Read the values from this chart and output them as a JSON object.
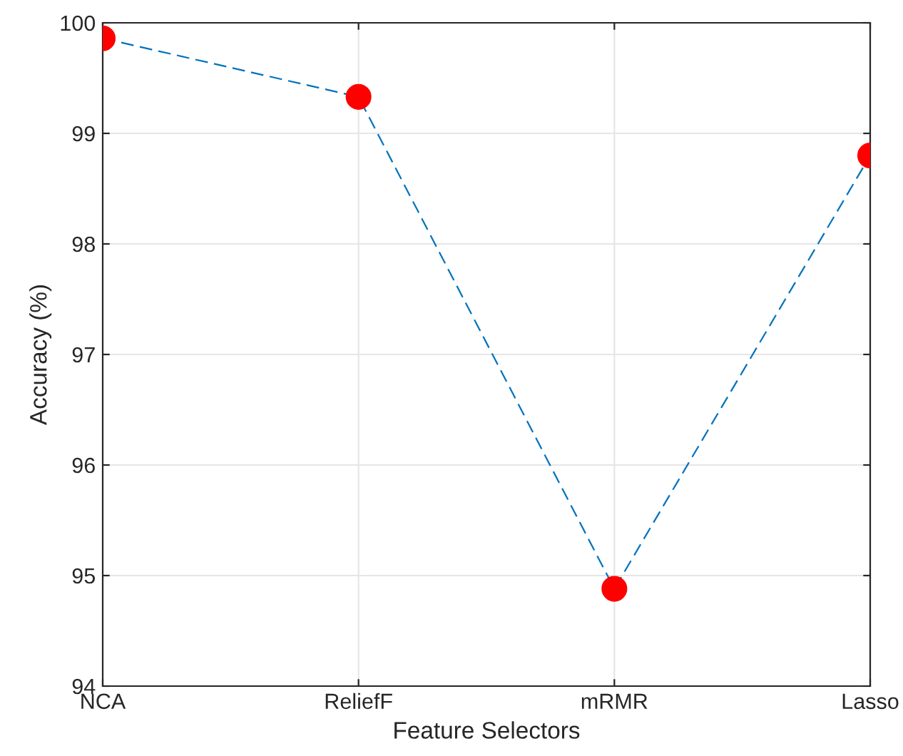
{
  "chart_data": {
    "type": "line",
    "xlabel": "Feature Selectors",
    "ylabel": "Accuracy (%)",
    "categories": [
      "NCA",
      "ReliefF",
      "mRMR",
      "Lasso"
    ],
    "series": [
      {
        "color": "#0072bd",
        "colors": [
          "#ff0000",
          "#ff0000",
          "#ff0000",
          "#ff0000"
        ],
        "values": [
          99.86,
          99.33,
          94.88,
          98.8
        ]
      }
    ],
    "ylim": [
      94,
      100
    ],
    "yticks": [
      94,
      95,
      96,
      97,
      98,
      99,
      100
    ],
    "grid": true,
    "marker": "circle",
    "line_style": "dashed"
  }
}
